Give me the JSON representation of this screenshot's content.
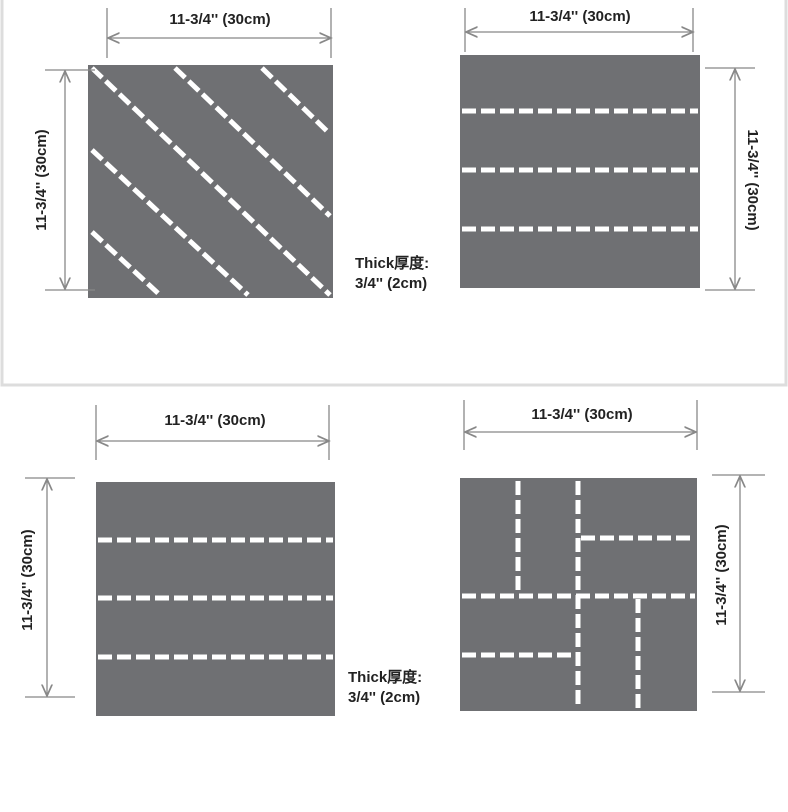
{
  "panels": [
    {
      "width_label": "11-3/4'' (30cm)",
      "height_label": "11-3/4'' (30cm)"
    },
    {
      "width_label": "11-3/4'' (30cm)",
      "height_label": "11-3/4'' (30cm)"
    },
    {
      "width_label": "11-3/4'' (30cm)",
      "height_label": "11-3/4'' (30cm)"
    },
    {
      "width_label": "11-3/4'' (30cm)",
      "height_label": "11-3/4'' (30cm)"
    }
  ],
  "thickness_notes": [
    {
      "title": "Thick厚度:",
      "value": "3/4'' (2cm)"
    },
    {
      "title": "Thick厚度:",
      "value": "3/4'' (2cm)"
    }
  ]
}
